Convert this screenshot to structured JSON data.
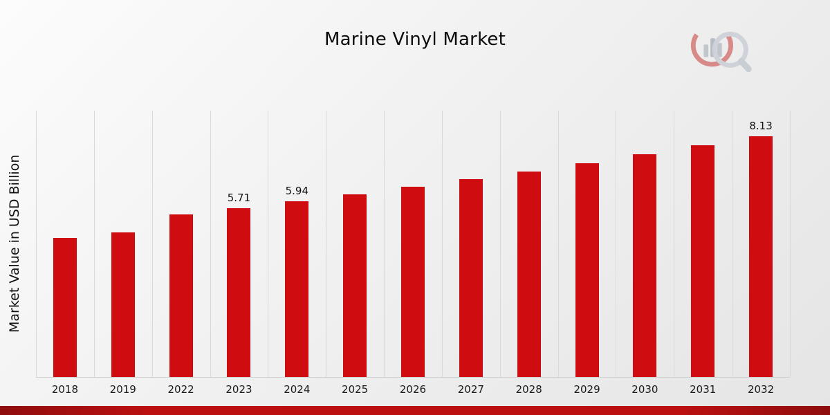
{
  "chart": {
    "bar_color": "#cf0c10",
    "gridline_color": "#d9d9d9",
    "footer_accent_color": "#bb1010"
  },
  "chart_data": {
    "type": "bar",
    "title": "Marine Vinyl Market",
    "xlabel": "",
    "ylabel": "Market Value in USD Billion",
    "categories": [
      "2018",
      "2019",
      "2022",
      "2023",
      "2024",
      "2025",
      "2026",
      "2027",
      "2028",
      "2029",
      "2030",
      "2031",
      "2032"
    ],
    "values": [
      4.69,
      4.88,
      5.49,
      5.71,
      5.94,
      6.18,
      6.43,
      6.68,
      6.95,
      7.23,
      7.52,
      7.82,
      8.13
    ],
    "data_labels": [
      "",
      "",
      "",
      "5.71",
      "5.94",
      "",
      "",
      "",
      "",
      "",
      "",
      "",
      "8.13"
    ],
    "ylim": [
      0,
      9
    ],
    "grid": "vertical",
    "legend": "none",
    "series_name": "Market Value in USD Billion"
  },
  "logo": {
    "name": "chart-magnifier-logo"
  }
}
